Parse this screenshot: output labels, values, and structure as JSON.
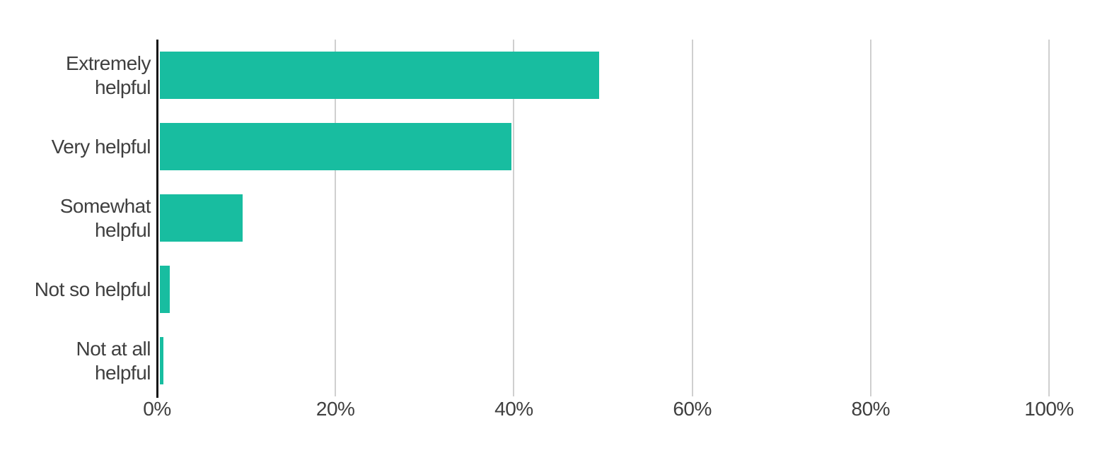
{
  "chart_data": {
    "type": "bar",
    "orientation": "horizontal",
    "title": "",
    "categories": [
      "Extremely helpful",
      "Very helpful",
      "Somewhat helpful",
      "Not so helpful",
      "Not at all helpful"
    ],
    "category_label_lines": [
      [
        "Extremely",
        "helpful"
      ],
      [
        "Very helpful"
      ],
      [
        "Somewhat",
        "helpful"
      ],
      [
        "Not so helpful"
      ],
      [
        "Not at all",
        "helpful"
      ]
    ],
    "values": [
      49.6,
      39.7,
      9.6,
      1.4,
      0.7
    ],
    "value_unit": "percent",
    "x_tick_labels": [
      "0%",
      "20%",
      "40%",
      "60%",
      "80%",
      "100%"
    ],
    "x_tick_values": [
      0,
      20,
      40,
      60,
      80,
      100
    ],
    "xlim": [
      0,
      100
    ],
    "grid": "vertical-gridlines-behind-bars",
    "legend": false,
    "colors": {
      "bar": "#18bda0",
      "gridline": "#cfcfcf",
      "axis_line": "#141414",
      "text": "#3f3f3f",
      "background": "#ffffff"
    }
  }
}
